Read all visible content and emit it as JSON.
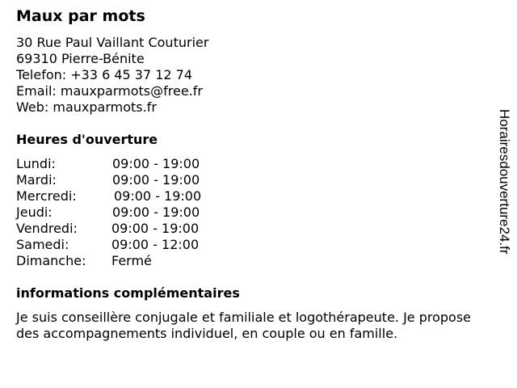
{
  "business": {
    "name": "Maux par mots",
    "address_line1": "30 Rue Paul Vaillant Couturier",
    "address_line2": "69310 Pierre-Bénite",
    "phone": "Telefon: +33 6 45 37 12 74",
    "email": "Email: mauxparmots@free.fr",
    "web": "Web: mauxparmots.fr"
  },
  "hours": {
    "title": "Heures d'ouverture",
    "days": [
      {
        "day": "Lundi:",
        "time": "09:00 - 19:00"
      },
      {
        "day": "Mardi:",
        "time": "09:00 - 19:00"
      },
      {
        "day": "Mercredi:",
        "time": "09:00 - 19:00"
      },
      {
        "day": "Jeudi:",
        "time": "09:00 - 19:00"
      },
      {
        "day": "Vendredi:",
        "time": "09:00 - 19:00"
      },
      {
        "day": "Samedi:",
        "time": "09:00 - 12:00"
      },
      {
        "day": "Dimanche:",
        "time": "Fermé"
      }
    ]
  },
  "info": {
    "title": "informations complémentaires",
    "text": "Je suis conseillère conjugale et familiale et logothérapeute. Je propose des accompagnements individuel, en couple ou en famille."
  },
  "watermark": "Horairesdouverture24.fr"
}
